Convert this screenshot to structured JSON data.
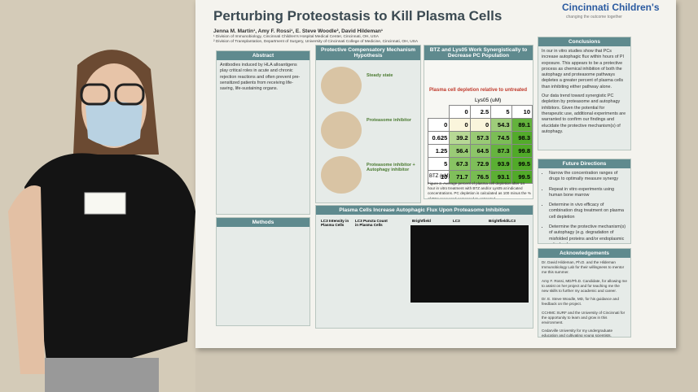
{
  "poster": {
    "title": "Perturbing Proteostasis to Kill Plasma Cells",
    "authors": "Jenna M. Martin¹, Amy F. Rossi¹, E. Steve Woodle², David Hildeman¹",
    "affiliations": [
      "¹ Division of Immunobiology, Cincinnati Children's Hospital Medical Center, Cincinnati, OH, USA",
      "² Division of Transplantation, Department of Surgery, University of Cincinnati College of Medicine, Cincinnati, OH, USA"
    ],
    "logo": {
      "name": "Cincinnati Children's",
      "tagline": "changing the outcome together"
    },
    "abstract": {
      "heading": "Abstract",
      "text": "Antibodies induced by HLA alloantigens play critical roles in acute and chronic rejection reactions and often prevent pre-sensitized patients from receiving life-saving, life-sustaining organs."
    },
    "methods": {
      "heading": "Methods"
    },
    "hypothesis": {
      "heading": "Protective Compensatory Mechanism Hypothesis",
      "states": [
        "Steady state",
        "Proteasome inhibitor",
        "Proteasome inhibitor + Autophagy inhibitor"
      ]
    },
    "synergy": {
      "heading": "BTZ and Lys05 Work Synergistically to Decrease PC Population",
      "heatmap": {
        "title": "Plasma cell depletion relative to untreated",
        "col_axis": "Lys05 (uM)",
        "row_axis": "BTZ (nM)",
        "cols": [
          0,
          2.5,
          5,
          10
        ],
        "rows": [
          0,
          0.625,
          1.25,
          5,
          10
        ],
        "cells": [
          [
            0,
            0,
            54.3,
            89.1
          ],
          [
            39.2,
            57.3,
            74.5,
            98.3
          ],
          [
            56.4,
            64.5,
            87.3,
            99.8
          ],
          [
            67.3,
            72.9,
            93.9,
            99.5
          ],
          [
            71.7,
            76.5,
            93.1,
            99.5
          ]
        ]
      },
      "caption": "Figure 2. Average percent of plasma cell depletion after 14 hour in vitro treatment with BTZ and/or Lys05 at indicated concentrations. PC depletion is calculated as 100 minus the % of PCs recovered compared to untreated."
    },
    "flux": {
      "heading": "Plasma Cells Increase Autophagic Flux Upon Proteasome Inhibition",
      "panels": [
        "LC3 Intensity in Plasma Cells",
        "LC3 Puncta Count in Plasma Cells",
        "Brightfield",
        "LC3",
        "Brightfield/LC3"
      ]
    },
    "conclusions": {
      "heading": "Conclusions",
      "paragraphs": [
        "In our in vitro studies show that PCs increase autophagic flux within hours of PI exposure. This appears to be a protective process as chemical inhibition of both the autophagy and proteasome pathways depletes a greater percent of plasma cells than inhibiting either pathway alone.",
        "Our data trend toward synergistic PC depletion by proteasome and autophagy inhibitors. Given the potential for therapeutic use, additional experiments are warranted to confirm our findings and elucidate the protective mechanism(s) of autophagy."
      ]
    },
    "future": {
      "heading": "Future Directions",
      "items": [
        "Narrow the concentration ranges of drugs to optimally measure synergy",
        "Repeat in vitro experiments using human bone marrow",
        "Determine in vivo efficacy of combination drug treatment on plasma cell depletion",
        "Determine the protective mechanism(s) of autophagy (e.g. degradation of misfolded proteins and/or endoplasmic reticulum)"
      ]
    },
    "acknowledgements": {
      "heading": "Acknowledgements",
      "items": [
        "Dr. David Hildeman, Ph.D. and the Hildeman Immunobiology Lab for their willingness to mentor me this summer.",
        "Amy F. Rossi, MD/Ph.D. Candidate, for allowing me to assist on her project and for teaching me the new skills to further my academic and career.",
        "Dr. E. Steve Woodle, MD, for his guidance and feedback on the project.",
        "CCHMC SURF and the University of Cincinnati for the opportunity to learn and grow in this environment.",
        "Cedarville University for my undergraduate education and cultivating young scientists."
      ]
    }
  }
}
